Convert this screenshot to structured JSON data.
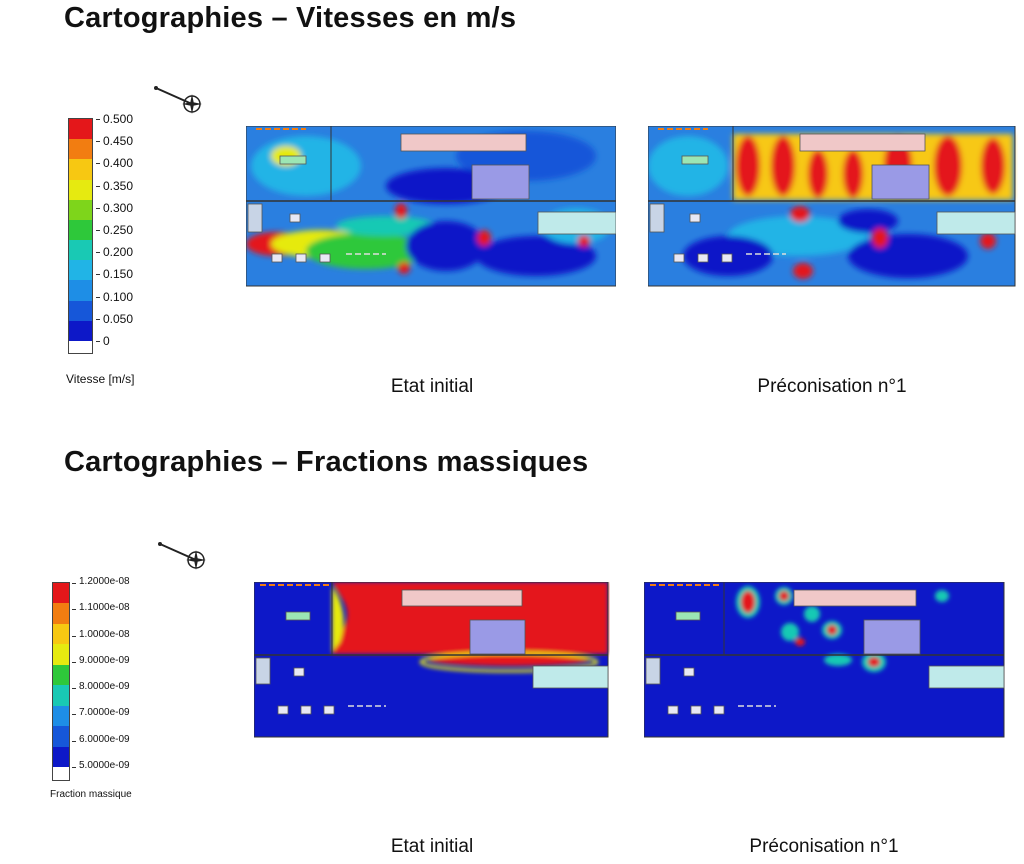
{
  "section1": {
    "title": "Cartographies – Vitesses en m/s",
    "legend": {
      "label": "Vitesse [m/s]",
      "ticks": [
        "0.500",
        "0.450",
        "0.400",
        "0.350",
        "0.300",
        "0.250",
        "0.200",
        "0.150",
        "0.100",
        "0.050",
        "0"
      ],
      "colors": [
        "#e4171a",
        "#f27d11",
        "#f7c812",
        "#e6ea10",
        "#7ed51b",
        "#2ec83a",
        "#19c9b4",
        "#21b4e6",
        "#1e8ee6",
        "#1657d9",
        "#0d18c8"
      ]
    },
    "captions": [
      "Etat initial",
      "Préconisation n°1"
    ]
  },
  "section2": {
    "title": "Cartographies – Fractions massiques",
    "legend": {
      "label": "Fraction massique",
      "ticks": [
        "1.2000e-08",
        "1.1000e-08",
        "1.0000e-08",
        "9.0000e-09",
        "8.0000e-09",
        "7.0000e-09",
        "6.0000e-09",
        "5.0000e-09"
      ],
      "colors": [
        "#e4171a",
        "#f27d11",
        "#f7c812",
        "#e6ea10",
        "#2ec83a",
        "#19c9b4",
        "#1e8ee6",
        "#1657d9",
        "#0d18c8"
      ]
    },
    "captions": [
      "Etat initial",
      "Préconisation n°1"
    ]
  }
}
